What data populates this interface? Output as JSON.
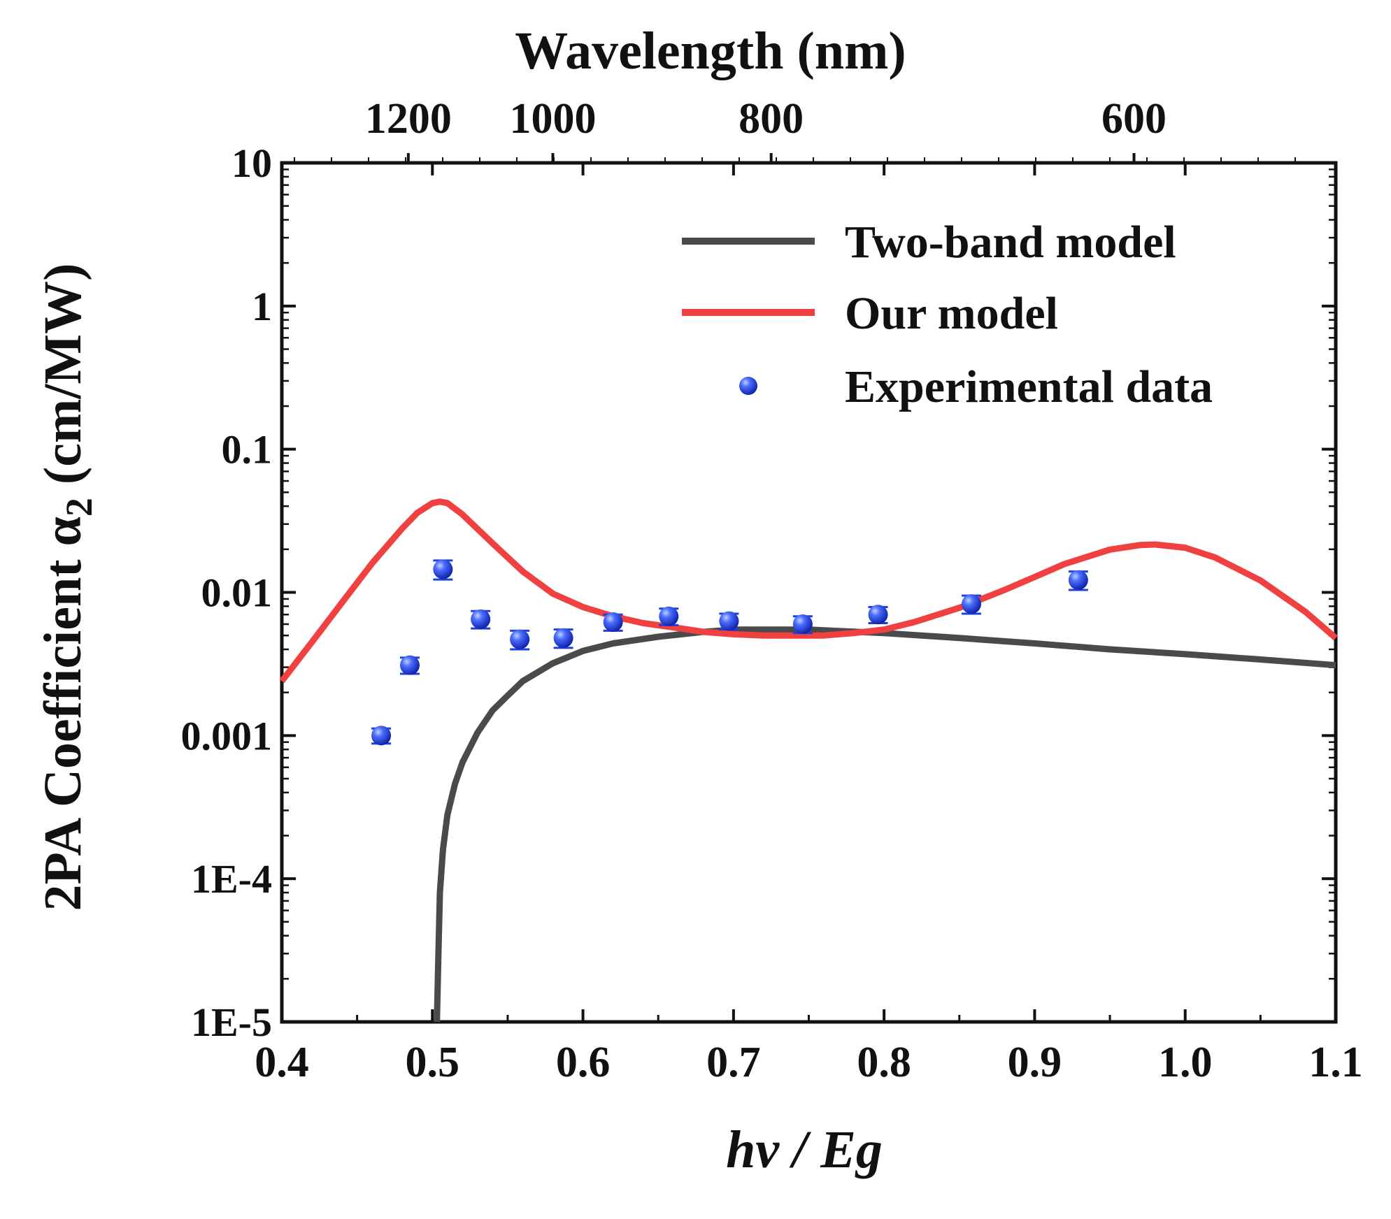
{
  "chart_data": {
    "type": "line",
    "xlabel": "hν / Eg",
    "ylabel": "2PA Coefficient α",
    "ylabel_subscript": "2",
    "ylabel_units": " (cm/MW)",
    "top_axis_label": "Wavelength (nm)",
    "top_axis_ticks": [
      {
        "label": "1200",
        "x": 0.484
      },
      {
        "label": "1000",
        "x": 0.58
      },
      {
        "label": "800",
        "x": 0.725
      },
      {
        "label": "600",
        "x": 0.966
      }
    ],
    "xlim": [
      0.4,
      1.1
    ],
    "x_ticks": [
      "0.4",
      "0.5",
      "0.6",
      "0.7",
      "0.8",
      "0.9",
      "1.0",
      "1.1"
    ],
    "x_tick_values": [
      0.4,
      0.5,
      0.6,
      0.7,
      0.8,
      0.9,
      1.0,
      1.1
    ],
    "yscale": "log",
    "ylim": [
      1e-05,
      10
    ],
    "y_ticks": [
      "1E-5",
      "1E-4",
      "0.001",
      "0.01",
      "0.1",
      "1",
      "10"
    ],
    "y_tick_values": [
      1e-05,
      0.0001,
      0.001,
      0.01,
      0.1,
      1,
      10
    ],
    "legend_position": "top-right",
    "series": [
      {
        "name": "Two-band model",
        "kind": "line",
        "color": "#4a4a4a",
        "x": [
          0.503,
          0.504,
          0.505,
          0.507,
          0.51,
          0.515,
          0.52,
          0.53,
          0.54,
          0.55,
          0.56,
          0.58,
          0.6,
          0.62,
          0.65,
          0.68,
          0.7,
          0.72,
          0.75,
          0.8,
          0.85,
          0.9,
          0.95,
          1.0,
          1.05,
          1.1
        ],
        "y": [
          1e-05,
          3e-05,
          8e-05,
          0.00016,
          0.00028,
          0.00046,
          0.00065,
          0.00105,
          0.0015,
          0.0019,
          0.0024,
          0.0032,
          0.0039,
          0.0044,
          0.0049,
          0.0053,
          0.0055,
          0.0055,
          0.0055,
          0.0052,
          0.0048,
          0.0044,
          0.004,
          0.0037,
          0.0034,
          0.0031
        ]
      },
      {
        "name": "Our model",
        "kind": "line",
        "color": "#f04040",
        "x": [
          0.4,
          0.42,
          0.44,
          0.46,
          0.48,
          0.49,
          0.5,
          0.505,
          0.51,
          0.52,
          0.54,
          0.56,
          0.58,
          0.6,
          0.62,
          0.64,
          0.66,
          0.68,
          0.7,
          0.72,
          0.74,
          0.76,
          0.78,
          0.8,
          0.82,
          0.85,
          0.88,
          0.9,
          0.92,
          0.95,
          0.97,
          0.98,
          1.0,
          1.02,
          1.05,
          1.08,
          1.1
        ],
        "y": [
          0.0024,
          0.0045,
          0.0085,
          0.016,
          0.028,
          0.036,
          0.042,
          0.043,
          0.042,
          0.035,
          0.022,
          0.014,
          0.0098,
          0.0079,
          0.0068,
          0.0061,
          0.0057,
          0.0053,
          0.0051,
          0.005,
          0.005,
          0.005,
          0.0052,
          0.0055,
          0.0062,
          0.0078,
          0.0104,
          0.0128,
          0.0158,
          0.0199,
          0.0214,
          0.0216,
          0.0205,
          0.0175,
          0.0121,
          0.0073,
          0.0048
        ]
      },
      {
        "name": "Experimental data",
        "kind": "scatter",
        "color": "#1f3fe0",
        "x": [
          0.466,
          0.485,
          0.507,
          0.532,
          0.558,
          0.587,
          0.62,
          0.657,
          0.697,
          0.746,
          0.796,
          0.858,
          0.929
        ],
        "y": [
          0.001,
          0.0031,
          0.0145,
          0.0065,
          0.0047,
          0.0048,
          0.0062,
          0.0068,
          0.0063,
          0.006,
          0.007,
          0.0083,
          0.0122
        ],
        "y_err": [
          0.00012,
          0.0004,
          0.0022,
          0.0009,
          0.0007,
          0.0007,
          0.0008,
          0.0009,
          0.0008,
          0.0008,
          0.0009,
          0.0012,
          0.0018
        ]
      }
    ]
  }
}
